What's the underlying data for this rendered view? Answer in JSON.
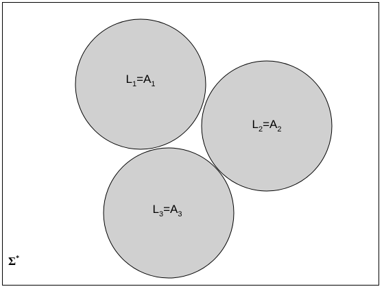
{
  "universe": {
    "symbol": "Σ",
    "superscript": "*"
  },
  "sets": [
    {
      "left": "L",
      "left_sub": "1",
      "eq": "=",
      "right": "A",
      "right_sub": "1"
    },
    {
      "left": "L",
      "left_sub": "2",
      "eq": "=",
      "right": "A",
      "right_sub": "2"
    },
    {
      "left": "L",
      "left_sub": "3",
      "eq": "=",
      "right": "A",
      "right_sub": "3"
    }
  ],
  "colors": {
    "set_fill": "#d0d0d0",
    "stroke": "#000000",
    "background": "#ffffff"
  }
}
